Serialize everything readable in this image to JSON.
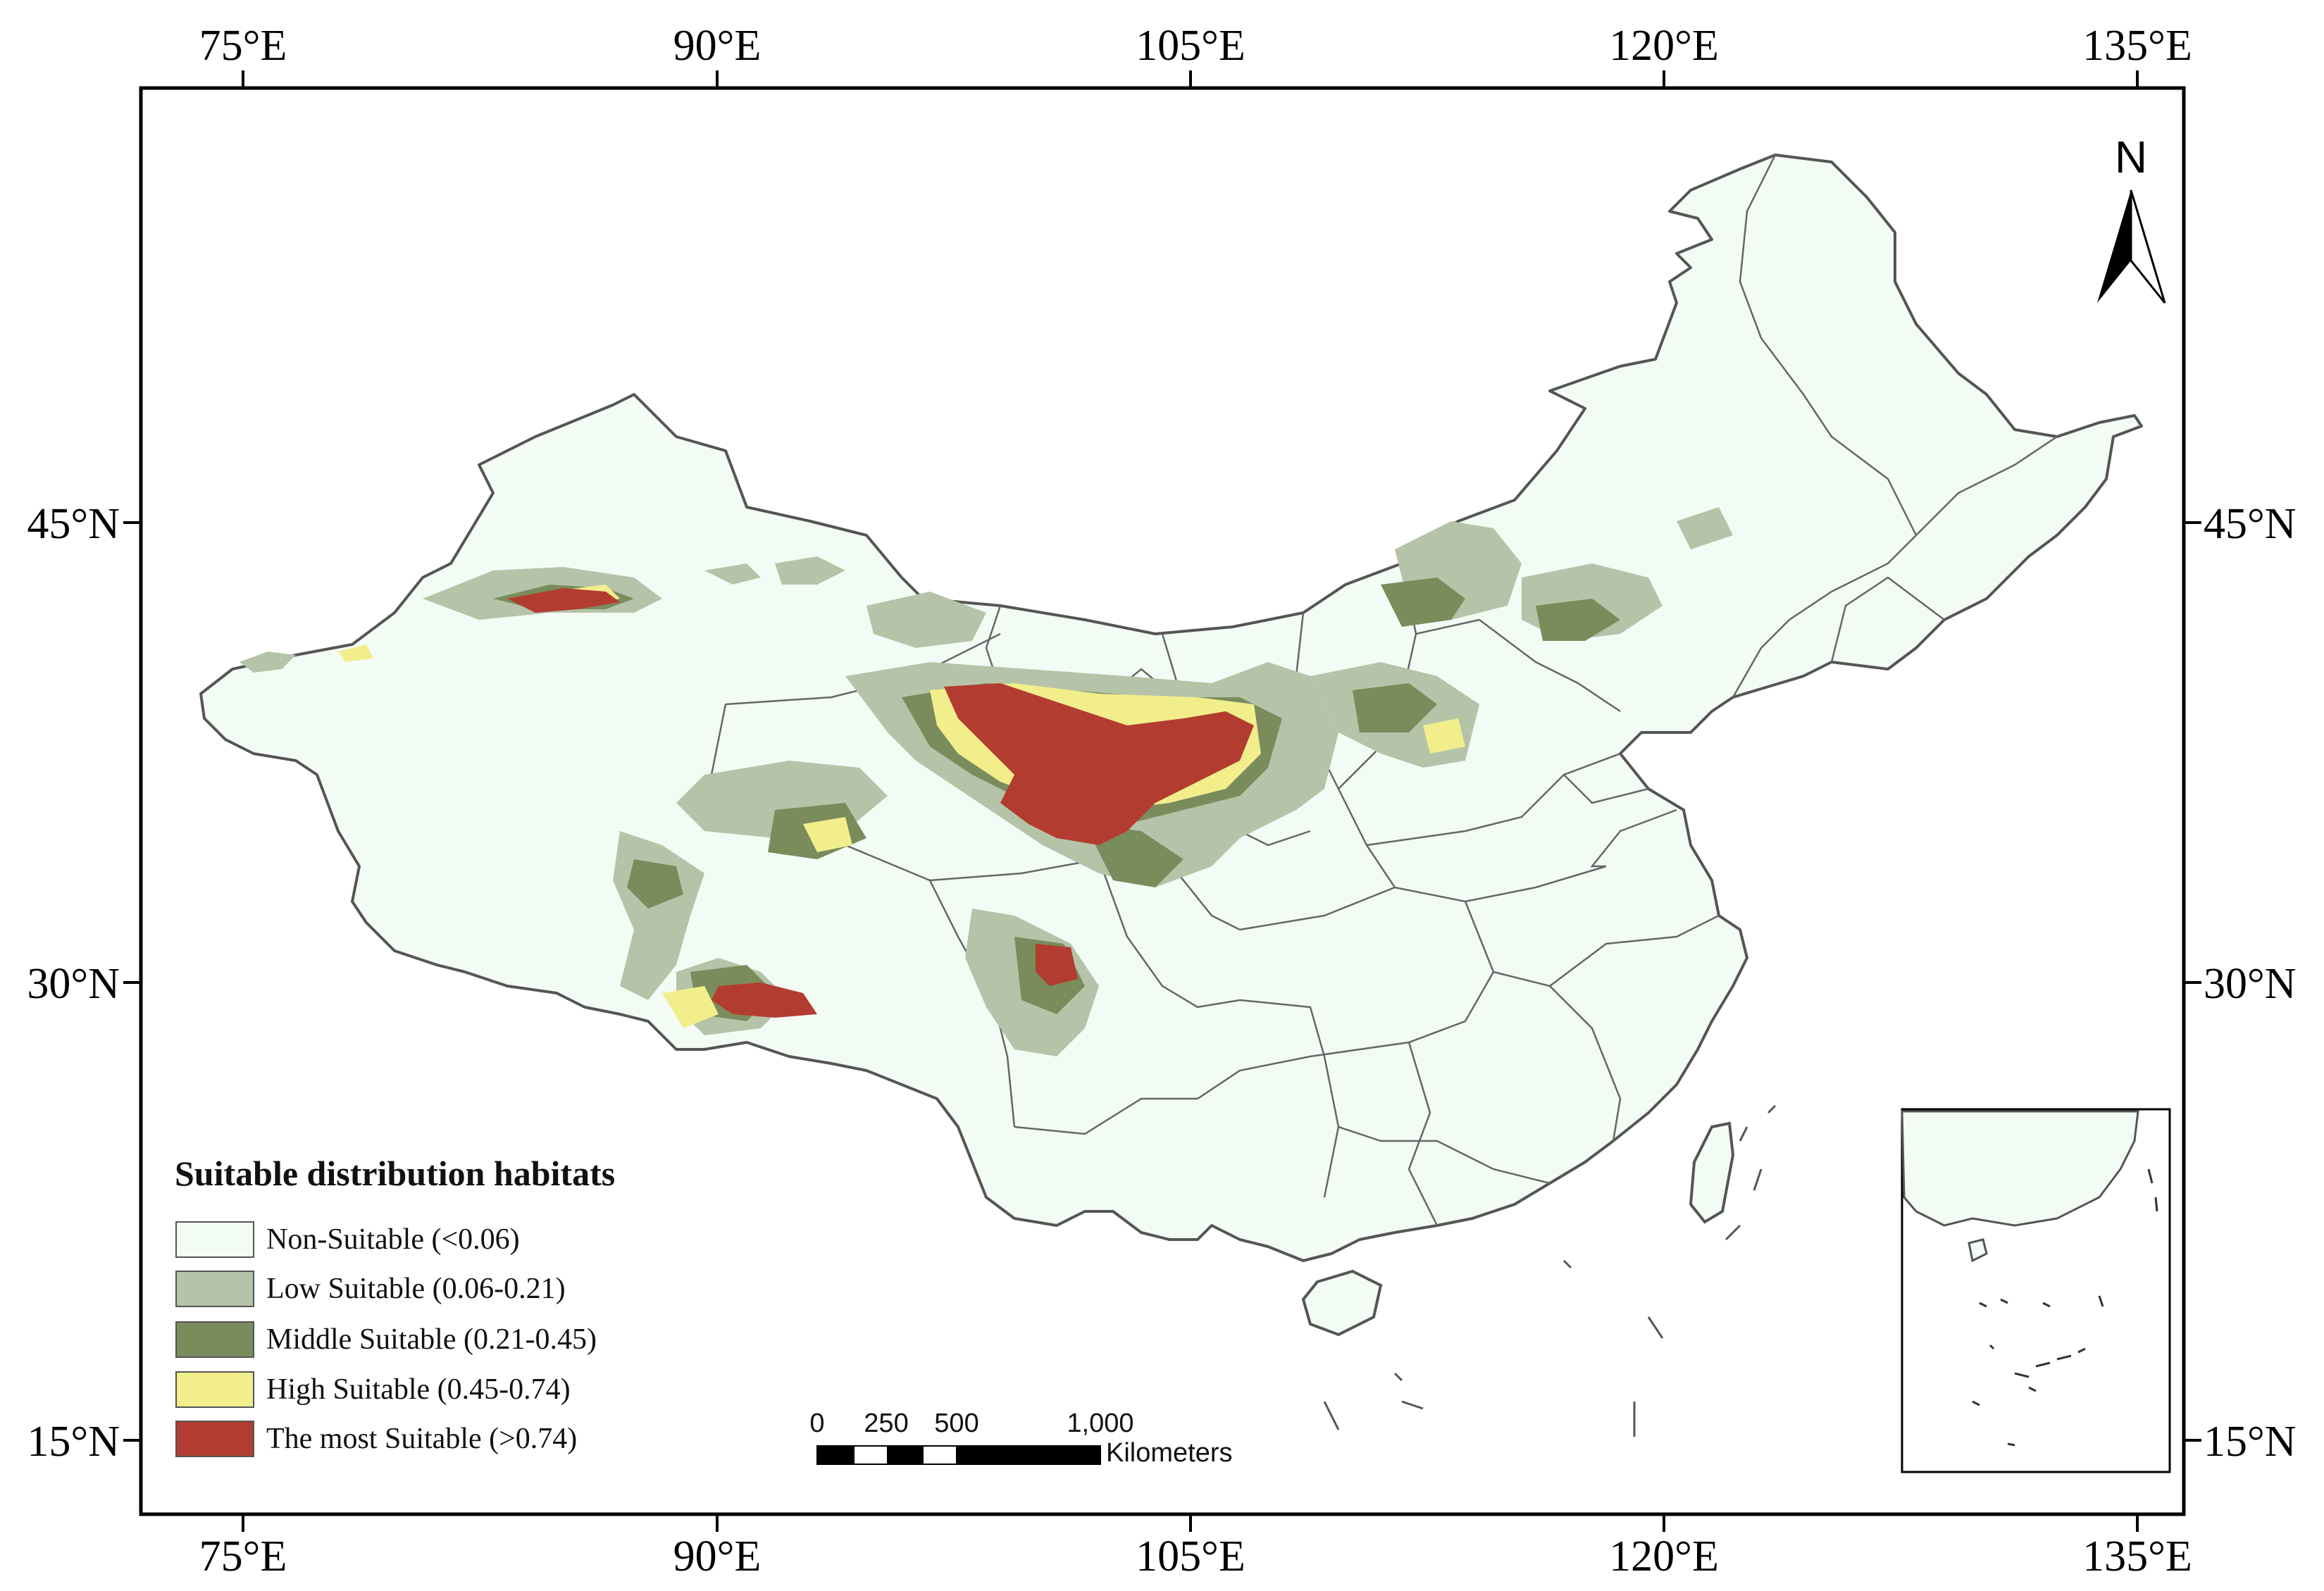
{
  "map": {
    "longitude_labels": [
      "75°E",
      "90°E",
      "105°E",
      "120°E",
      "135°E"
    ],
    "latitude_labels": [
      "45°N",
      "30°N",
      "15°N"
    ],
    "north_arrow": {
      "label": "N",
      "icon": "north-arrow-icon"
    },
    "legend": {
      "title": "Suitable distribution habitats",
      "items": [
        {
          "label": "Non-Suitable (<0.06)",
          "color": "#f3fbf5"
        },
        {
          "label": "Low Suitable (0.06-0.21)",
          "color": "#b5c4a8"
        },
        {
          "label": "Middle Suitable (0.21-0.45)",
          "color": "#7a8c5c"
        },
        {
          "label": "High Suitable (0.45-0.74)",
          "color": "#f2ee8c"
        },
        {
          "label": "The most Suitable (>0.74)",
          "color": "#b33c30"
        }
      ]
    },
    "scale_bar": {
      "ticks": [
        "0",
        "250",
        "500",
        "1,000"
      ],
      "unit": "Kilometers"
    },
    "colors": {
      "land": "#f3fbf5",
      "boundary": "#555555",
      "frame": "#000000"
    }
  }
}
